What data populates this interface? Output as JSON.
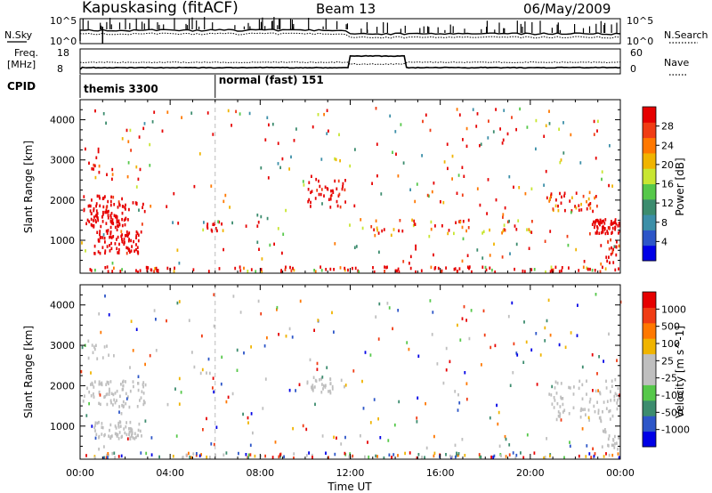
{
  "header": {
    "station": "Kapuskasing (fitACF)",
    "beam": "Beam 13",
    "date": "06/May/2009"
  },
  "noise_panel": {
    "left_label": "N.Sky",
    "right_label": "N.Search",
    "left_ticks": [
      "10^5",
      "10^0"
    ],
    "right_ticks": [
      "10^5",
      "10^0"
    ]
  },
  "freq_panel": {
    "left_label_line1": "Freq.",
    "left_label_line2": "[MHz]",
    "right_label": "Nave",
    "left_ticks": [
      "18",
      "8"
    ],
    "right_ticks": [
      "60",
      "0"
    ]
  },
  "cpid_panel": {
    "label": "CPID",
    "modes": [
      {
        "name": "themis 3300",
        "start_hour": 0
      },
      {
        "name": "normal (fast) 151",
        "start_hour": 6.0
      }
    ]
  },
  "x_axis": {
    "label": "Time UT",
    "ticks": [
      "00:00",
      "04:00",
      "08:00",
      "12:00",
      "16:00",
      "20:00",
      "00:00"
    ]
  },
  "chart_data": [
    {
      "type": "heatmap",
      "title": "Power",
      "xlabel": "",
      "ylabel": "Slant Range [km]",
      "xlim": [
        0,
        24
      ],
      "ylim": [
        180,
        4500
      ],
      "y_ticks": [
        "4000",
        "3000",
        "2000",
        "1000"
      ],
      "colorbar": {
        "label": "Power [dB]",
        "ticks": [
          "28",
          "24",
          "20",
          "16",
          "12",
          "8",
          "4"
        ],
        "colors": [
          "#0000e6",
          "#2d56c8",
          "#3c8fa8",
          "#3c8c6e",
          "#56c84a",
          "#c8e632",
          "#f0b400",
          "#ff7800",
          "#f03c14",
          "#e60000"
        ],
        "range": [
          0,
          30
        ]
      },
      "clusters": [
        {
          "t0": 0.1,
          "t1": 2.9,
          "r0": 1600,
          "r1": 2100,
          "v0": 8,
          "v1": 20,
          "n": 60
        },
        {
          "t0": 0.2,
          "t1": 2.0,
          "r0": 1300,
          "r1": 1600,
          "v0": 14,
          "v1": 26,
          "n": 50
        },
        {
          "t0": 0.6,
          "t1": 2.7,
          "r0": 650,
          "r1": 1250,
          "v0": 14,
          "v1": 30,
          "n": 80
        },
        {
          "t0": 0.3,
          "t1": 1.6,
          "r0": 2500,
          "r1": 3100,
          "v0": 6,
          "v1": 12,
          "n": 12
        },
        {
          "t0": 5.6,
          "t1": 6.3,
          "r0": 1150,
          "r1": 1450,
          "v0": 8,
          "v1": 18,
          "n": 10
        },
        {
          "t0": 10.0,
          "t1": 11.8,
          "r0": 1800,
          "r1": 2500,
          "v0": 8,
          "v1": 14,
          "n": 40
        },
        {
          "t0": 12.5,
          "t1": 20.5,
          "r0": 1050,
          "r1": 1500,
          "v0": 5,
          "v1": 11,
          "n": 50
        },
        {
          "t0": 20.8,
          "t1": 23.0,
          "r0": 1700,
          "r1": 2200,
          "v0": 6,
          "v1": 12,
          "n": 40
        },
        {
          "t0": 22.7,
          "t1": 23.95,
          "r0": 1150,
          "r1": 1500,
          "v0": 10,
          "v1": 26,
          "n": 60
        },
        {
          "t0": 23.1,
          "t1": 23.95,
          "r0": 380,
          "r1": 1000,
          "v0": 6,
          "v1": 14,
          "n": 20
        },
        {
          "t0": 0.0,
          "t1": 24.0,
          "r0": 190,
          "r1": 320,
          "v0": 4,
          "v1": 22,
          "n": 130
        },
        {
          "t0": 0.0,
          "t1": 24.0,
          "r0": 400,
          "r1": 4300,
          "v0": 2,
          "v1": 12,
          "n": 260
        }
      ]
    },
    {
      "type": "heatmap",
      "title": "Velocity",
      "xlabel": "Time UT",
      "ylabel": "Slant Range [km]",
      "xlim": [
        0,
        24
      ],
      "ylim": [
        180,
        4500
      ],
      "y_ticks": [
        "4000",
        "3000",
        "2000",
        "1000"
      ],
      "colorbar": {
        "label": "Velocity [m s^-1]",
        "ticks": [
          "1000",
          "500",
          "100",
          "25",
          "-25",
          "-100",
          "-500",
          "-1000"
        ],
        "colors": [
          "#0000e6",
          "#2d56c8",
          "#3c8c6e",
          "#56c84a",
          "#bfbfbf",
          "#bfbfbf",
          "#f0b400",
          "#ff7800",
          "#f03c14",
          "#e60000"
        ],
        "ground_scatter_color": "#bfbfbf"
      },
      "clusters": [
        {
          "t0": 0.1,
          "t1": 2.9,
          "r0": 1450,
          "r1": 2100,
          "v0": 4,
          "v1": 5,
          "n": 80
        },
        {
          "t0": 0.6,
          "t1": 2.7,
          "r0": 650,
          "r1": 1100,
          "v0": 4,
          "v1": 5,
          "n": 70
        },
        {
          "t0": 0.3,
          "t1": 1.6,
          "r0": 2600,
          "r1": 3000,
          "v0": 4,
          "v1": 5,
          "n": 12
        },
        {
          "t0": 10.0,
          "t1": 11.8,
          "r0": 1800,
          "r1": 2200,
          "v0": 4,
          "v1": 5,
          "n": 30
        },
        {
          "t0": 20.8,
          "t1": 23.95,
          "r0": 1100,
          "r1": 2100,
          "v0": 4,
          "v1": 5,
          "n": 80
        },
        {
          "t0": 23.1,
          "t1": 23.95,
          "r0": 380,
          "r1": 900,
          "v0": 4,
          "v1": 5,
          "n": 20
        },
        {
          "t0": 0.0,
          "t1": 24.0,
          "r0": 190,
          "r1": 320,
          "v0": 0,
          "v1": 9,
          "n": 130
        },
        {
          "t0": 0.0,
          "t1": 24.0,
          "r0": 400,
          "r1": 4300,
          "v0": 0,
          "v1": 9,
          "n": 230
        }
      ]
    }
  ]
}
